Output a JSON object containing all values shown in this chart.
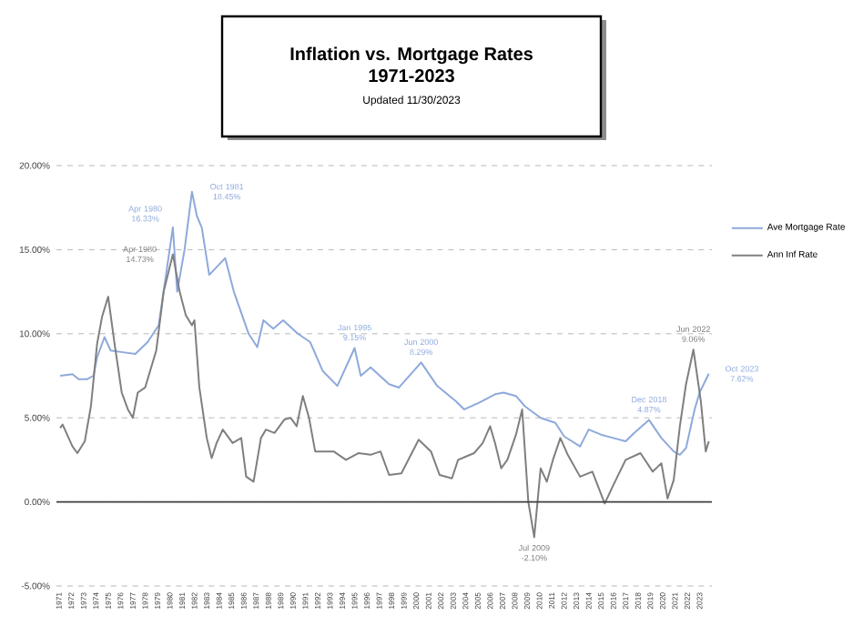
{
  "chart_data": {
    "type": "line",
    "title": "Inflation vs. Mortgage Rates",
    "subtitle": "1971-2023",
    "annotations": [
      "Updated  11/30/2023",
      {
        "text": "Apr 1980 16.33%",
        "x": 1980.25,
        "y": 16.33
      },
      {
        "text": "Oct 1981 18.45%",
        "x": 1981.8,
        "y": 18.45
      },
      {
        "text": "Apr 1980 14.73%",
        "x": 1980.25,
        "y": 14.73
      },
      {
        "text": "Jan 1995 9.15%",
        "x": 1995.0,
        "y": 9.15
      },
      {
        "text": "Jun 2000 8.29%",
        "x": 2000.4,
        "y": 8.29
      },
      {
        "text": "Jul 2009 -2.10%",
        "x": 2009.58,
        "y": -2.1
      },
      {
        "text": "Dec 2018 4.87%",
        "x": 2018.9,
        "y": 4.87
      },
      {
        "text": "Jun 2022 9.06%",
        "x": 2022.5,
        "y": 9.06
      },
      {
        "text": "Oct 2023 7.62%",
        "x": 2023.75,
        "y": 7.62
      }
    ],
    "series": [
      {
        "name": "Ave Mortgage Rate",
        "color": "#8ea9db",
        "x": [
          1971.1,
          1972.1,
          1972.6,
          1973.3,
          1973.8,
          1974.1,
          1974.7,
          1975.2,
          1976.2,
          1977.2,
          1978.2,
          1979.1,
          1980.25,
          1980.6,
          1981.2,
          1981.8,
          1982.2,
          1982.6,
          1983.2,
          1984.5,
          1985.2,
          1986.4,
          1987.1,
          1987.6,
          1988.4,
          1989.2,
          1990.4,
          1991.4,
          1992.4,
          1993.6,
          1994.6,
          1995.0,
          1995.5,
          1996.3,
          1997.8,
          1998.6,
          2000.4,
          2001.7,
          2003.2,
          2003.9,
          2005.1,
          2006.4,
          2007.1,
          2008.1,
          2008.8,
          2010.1,
          2011.3,
          2012.0,
          2013.3,
          2014.0,
          2015.0,
          2016.0,
          2017.0,
          2017.7,
          2018.9,
          2019.9,
          2020.9,
          2021.4,
          2021.9,
          2022.6,
          2023.0,
          2023.75
        ],
        "values": [
          7.5,
          7.6,
          7.3,
          7.3,
          7.5,
          8.6,
          9.8,
          9.0,
          8.9,
          8.8,
          9.5,
          10.5,
          16.33,
          12.5,
          15.0,
          18.45,
          17.0,
          16.3,
          13.5,
          14.5,
          12.5,
          10.0,
          9.2,
          10.8,
          10.3,
          10.8,
          10.0,
          9.5,
          7.8,
          6.9,
          8.5,
          9.15,
          7.5,
          8.0,
          7.0,
          6.8,
          8.29,
          6.9,
          6.0,
          5.5,
          5.9,
          6.4,
          6.5,
          6.3,
          5.7,
          5.0,
          4.7,
          3.9,
          3.3,
          4.3,
          4.0,
          3.8,
          3.6,
          4.1,
          4.87,
          3.8,
          3.0,
          2.8,
          3.2,
          5.5,
          6.5,
          7.62
        ]
      },
      {
        "name": "Ann Inf Rate",
        "color": "#7f7f7f",
        "x": [
          1971.1,
          1971.3,
          1972.1,
          1972.5,
          1973.1,
          1973.6,
          1974.1,
          1974.5,
          1975.0,
          1975.5,
          1976.1,
          1976.6,
          1977.0,
          1977.4,
          1978.0,
          1978.9,
          1979.5,
          1980.25,
          1980.8,
          1981.3,
          1981.8,
          1982.0,
          1982.4,
          1983.0,
          1983.4,
          1983.8,
          1984.3,
          1985.1,
          1985.8,
          1986.2,
          1986.8,
          1987.4,
          1987.8,
          1988.5,
          1989.3,
          1989.8,
          1990.3,
          1990.8,
          1991.3,
          1991.8,
          1992.3,
          1993.3,
          1994.3,
          1995.3,
          1996.3,
          1997.1,
          1997.8,
          1998.8,
          2000.2,
          2001.2,
          2001.9,
          2002.9,
          2003.4,
          2004.7,
          2005.4,
          2006.0,
          2006.4,
          2006.9,
          2007.4,
          2008.1,
          2008.6,
          2009.1,
          2009.58,
          2010.1,
          2010.6,
          2011.1,
          2011.7,
          2012.3,
          2013.3,
          2014.3,
          2015.3,
          2016.0,
          2017.0,
          2018.2,
          2019.2,
          2019.9,
          2020.4,
          2020.9,
          2021.4,
          2021.9,
          2022.5,
          2023.1,
          2023.5,
          2023.75
        ],
        "values": [
          4.4,
          4.6,
          3.3,
          2.9,
          3.6,
          5.7,
          9.4,
          11.0,
          12.2,
          9.5,
          6.5,
          5.5,
          5.0,
          6.5,
          6.8,
          9.0,
          12.5,
          14.73,
          12.5,
          11.1,
          10.5,
          10.8,
          6.8,
          3.8,
          2.6,
          3.5,
          4.3,
          3.5,
          3.8,
          1.5,
          1.2,
          3.8,
          4.3,
          4.1,
          4.9,
          5.0,
          4.5,
          6.3,
          5.0,
          3.0,
          3.0,
          3.0,
          2.5,
          2.9,
          2.8,
          3.0,
          1.6,
          1.7,
          3.7,
          3.0,
          1.6,
          1.4,
          2.5,
          2.9,
          3.5,
          4.5,
          3.5,
          2.0,
          2.5,
          4.0,
          5.5,
          0.0,
          -2.1,
          2.0,
          1.2,
          2.5,
          3.8,
          2.8,
          1.5,
          1.8,
          -0.1,
          1.0,
          2.5,
          2.9,
          1.8,
          2.3,
          0.2,
          1.3,
          4.5,
          7.0,
          9.06,
          6.0,
          3.0,
          3.6
        ]
      }
    ],
    "xlim": [
      1970.8,
      2024
    ],
    "xticks": [
      1971,
      1972,
      1973,
      1974,
      1975,
      1976,
      1977,
      1978,
      1979,
      1980,
      1981,
      1982,
      1983,
      1984,
      1985,
      1986,
      1987,
      1988,
      1989,
      1990,
      1991,
      1992,
      1993,
      1994,
      1995,
      1996,
      1997,
      1998,
      1999,
      2000,
      2001,
      2002,
      2003,
      2004,
      2005,
      2006,
      2007,
      2008,
      2009,
      2010,
      2011,
      2012,
      2013,
      2014,
      2015,
      2016,
      2017,
      2018,
      2019,
      2020,
      2021,
      2022,
      2023
    ],
    "ylim": [
      -5,
      20
    ],
    "yticks": [
      {
        "value": -5,
        "label": "-5.00%"
      },
      {
        "value": 0,
        "label": "0.00%"
      },
      {
        "value": 5,
        "label": "5.00%"
      },
      {
        "value": 10,
        "label": "10.00%"
      },
      {
        "value": 15,
        "label": "15.00%"
      },
      {
        "value": 20,
        "label": "20.00%"
      }
    ],
    "ref_lines": [
      {
        "axis": "y",
        "value": 0,
        "color": "#404040"
      }
    ],
    "grid": "y",
    "legend": "right",
    "marker": "none",
    "line_style": "solid"
  }
}
